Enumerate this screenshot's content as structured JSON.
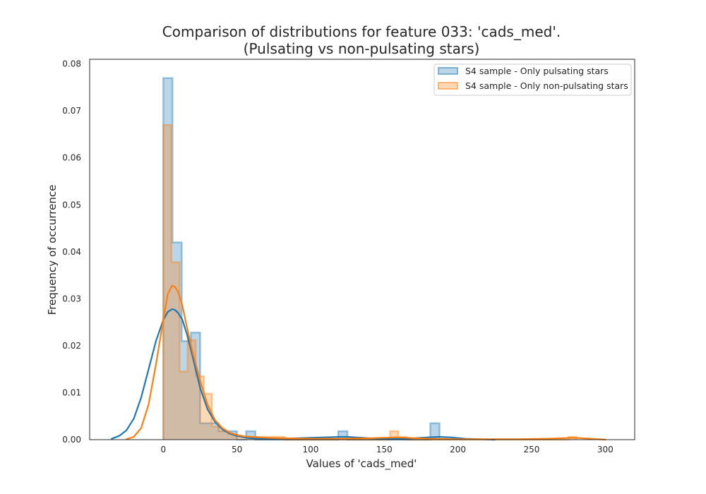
{
  "chart_data": {
    "type": "histogram",
    "title": "Comparison of distributions for feature 033: 'cads_med'.",
    "subtitle": "(Pulsating vs non-pulsating stars)",
    "xlabel": "Values of 'cads_med'",
    "ylabel": "Frequency of occurrence",
    "xlim": [
      -50,
      320
    ],
    "ylim": [
      0,
      0.081
    ],
    "xticks": [
      0,
      50,
      100,
      150,
      200,
      250,
      300
    ],
    "yticks": [
      0.0,
      0.01,
      0.02,
      0.03,
      0.04,
      0.05,
      0.06,
      0.07,
      0.08
    ],
    "grid": false,
    "legend_position": "top-right",
    "series": [
      {
        "name": "S4 sample - Only pulsating stars",
        "color": "#1f77b4",
        "histogram": {
          "bin_edges": [
            0,
            6.25,
            12.5,
            18.75,
            25,
            31.25,
            37.5,
            43.75,
            50,
            56.25,
            62.5,
            68.75,
            118.75,
            125,
            181.25,
            187.5
          ],
          "heights": [
            0.077,
            0.042,
            0.021,
            0.0228,
            0.0035,
            0.0035,
            0.0018,
            0.0018,
            0,
            0.0018,
            0,
            0,
            0.0018,
            0,
            0.0035
          ]
        },
        "kde": {
          "x": [
            -35,
            -30,
            -25,
            -20,
            -15,
            -10,
            -5,
            0,
            3,
            6,
            8,
            10,
            13,
            16,
            20,
            25,
            30,
            35,
            40,
            45,
            50,
            55,
            60,
            70,
            80,
            90,
            100,
            110,
            120,
            125,
            130,
            140,
            150,
            160,
            170,
            180,
            187,
            195,
            205,
            215,
            225
          ],
          "y": [
            0.0002,
            0.0008,
            0.002,
            0.0045,
            0.009,
            0.015,
            0.021,
            0.0255,
            0.0272,
            0.0278,
            0.0276,
            0.027,
            0.0255,
            0.0225,
            0.0175,
            0.011,
            0.0065,
            0.0038,
            0.0022,
            0.0013,
            0.0008,
            0.0005,
            0.0003,
            0.0002,
            0.0002,
            0.0003,
            0.0004,
            0.0005,
            0.0006,
            0.0006,
            0.0005,
            0.0003,
            0.0002,
            0.0002,
            0.0003,
            0.0005,
            0.0006,
            0.0005,
            0.0002,
            0.0001,
            0
          ]
        }
      },
      {
        "name": "S4 sample - Only non-pulsating stars",
        "color": "#ff7f0e",
        "histogram": {
          "bin_edges": [
            0,
            5.5,
            11,
            16.5,
            22,
            27.5,
            33,
            38.5,
            44,
            49.5,
            55,
            60.5,
            66,
            71.5,
            77,
            82.5,
            154,
            159.5,
            165,
            275,
            280.5
          ],
          "heights": [
            0.067,
            0.0378,
            0.0145,
            0.0212,
            0.0135,
            0.0098,
            0.0028,
            0.0018,
            0.0012,
            0.0006,
            0.0006,
            0.0006,
            0.0006,
            0.0006,
            0.0006,
            0,
            0.0018,
            0.0006,
            0,
            0.0006
          ]
        },
        "kde": {
          "x": [
            -25,
            -20,
            -15,
            -10,
            -5,
            0,
            3,
            6,
            8,
            10,
            13,
            16,
            20,
            25,
            30,
            35,
            40,
            45,
            50,
            55,
            60,
            70,
            80,
            100,
            120,
            140,
            150,
            158,
            165,
            180,
            200,
            220,
            240,
            260,
            270,
            278,
            285,
            300
          ],
          "y": [
            0.0001,
            0.0006,
            0.0025,
            0.0075,
            0.016,
            0.0255,
            0.031,
            0.0328,
            0.0325,
            0.0315,
            0.0285,
            0.024,
            0.0185,
            0.0125,
            0.0075,
            0.0042,
            0.0025,
            0.0015,
            0.001,
            0.0007,
            0.0006,
            0.0004,
            0.0003,
            0.0002,
            0.0002,
            0.0003,
            0.0004,
            0.0005,
            0.0004,
            0.0002,
            0.0001,
            0.0001,
            0.0001,
            0.0002,
            0.0003,
            0.0004,
            0.0003,
            0
          ]
        }
      }
    ]
  }
}
